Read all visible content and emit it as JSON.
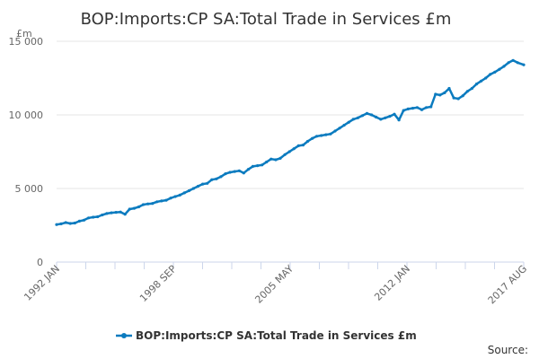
{
  "chart_data": {
    "type": "line",
    "title": "BOP:Imports:CP SA:Total Trade in Services £m",
    "ylabel": "£m",
    "xlabel": "",
    "ylim": [
      0,
      15000
    ],
    "yticks": [
      0,
      5000,
      10000,
      15000
    ],
    "ytick_labels": [
      "0",
      "5 000",
      "10 000",
      "15 000"
    ],
    "x_range": [
      "1992 JAN",
      "2017 AUG"
    ],
    "xtick_labels": [
      "1992 JAN",
      "1998 SEP",
      "2005 MAY",
      "2012 JAN",
      "2017 AUG"
    ],
    "legend": "top-bottom",
    "grid": true,
    "series": [
      {
        "name": "BOP:Imports:CP SA:Total Trade in Services £m",
        "color": "#0b7bbf",
        "x": [
          0,
          3,
          6,
          9,
          12,
          15,
          18,
          21,
          24,
          27,
          30,
          33,
          36,
          39,
          42,
          45,
          48,
          51,
          54,
          57,
          60,
          63,
          66,
          69,
          72,
          75,
          78,
          81,
          84,
          87,
          90,
          93,
          96,
          99,
          102,
          105,
          108,
          111,
          114,
          117,
          120,
          123,
          126,
          129,
          132,
          135,
          138,
          141,
          144,
          147,
          150,
          153,
          156,
          159,
          162,
          165,
          168,
          171,
          174,
          177,
          180,
          183,
          186,
          189,
          192,
          195,
          198,
          201,
          204,
          207,
          210,
          213,
          216,
          219,
          222,
          225,
          228,
          231,
          234,
          237,
          240,
          243,
          246,
          249,
          252,
          255,
          258,
          261,
          264,
          267,
          270,
          273,
          276,
          279,
          282,
          285,
          288,
          291,
          294,
          297,
          300,
          303,
          307
        ],
        "values": [
          2550,
          2600,
          2680,
          2620,
          2650,
          2780,
          2850,
          3000,
          3050,
          3080,
          3200,
          3300,
          3350,
          3380,
          3400,
          3250,
          3600,
          3650,
          3750,
          3900,
          3950,
          3980,
          4100,
          4150,
          4200,
          4350,
          4450,
          4550,
          4700,
          4850,
          5000,
          5150,
          5300,
          5350,
          5600,
          5650,
          5800,
          6000,
          6100,
          6150,
          6200,
          6050,
          6300,
          6500,
          6550,
          6600,
          6800,
          7000,
          6950,
          7050,
          7300,
          7500,
          7700,
          7900,
          7950,
          8200,
          8400,
          8550,
          8600,
          8650,
          8700,
          8900,
          9100,
          9300,
          9500,
          9700,
          9800,
          9950,
          10100,
          10000,
          9850,
          9700,
          9800,
          9900,
          10050,
          9650,
          10300,
          10400,
          10450,
          10500,
          10350,
          10500,
          10550,
          11400,
          11350,
          11500,
          11800,
          11150,
          11100,
          11300,
          11600,
          11800,
          12100,
          12300,
          12500,
          12750,
          12900,
          13100,
          13300,
          13550,
          13700,
          13550,
          13400
        ]
      }
    ]
  },
  "footer": {
    "source_label": "Source:"
  }
}
